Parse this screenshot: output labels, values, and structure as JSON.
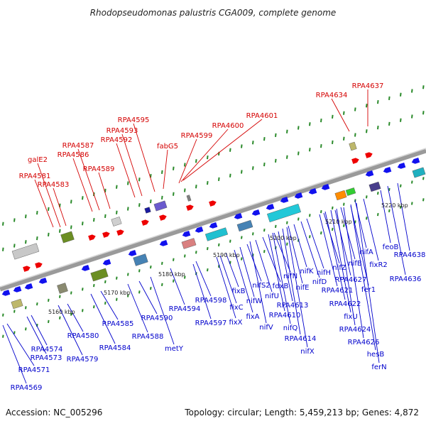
{
  "title": "Rhodopseudomonas palustris CGA009, complete genome",
  "footer": {
    "accession": "Accession: NC_005296",
    "topology": "Topology: circular; Length: 5,459,213 bp; Genes: 4,872"
  },
  "colors": {
    "label_top": "#d40000",
    "label_bottom": "#0000cc",
    "backbone": "#9a9a9a",
    "forward_gene": "#ee0000",
    "reverse_gene": "#1111ee",
    "tick": "#2a8a2a"
  },
  "kbp_ticks": [
    "5160 kbp",
    "5170 kbp",
    "5180 kbp",
    "5190 kbp",
    "5200 kbp",
    "5210 kbp",
    "5220 kbp"
  ],
  "top_labels": [
    "RPA4581",
    "galE2",
    "RPA4583",
    "RPA4586",
    "RPA4587",
    "RPA4589",
    "RPA4592",
    "RPA4593",
    "RPA4595",
    "fabG5",
    "RPA4599",
    "RPA4600",
    "RPA4601",
    "RPA4634",
    "RPA4637"
  ],
  "bottom_labels": [
    "RPA4569",
    "RPA4571",
    "RPA4573",
    "RPA4574",
    "RPA4579",
    "RPA4580",
    "RPA4584",
    "RPA4585",
    "RPA4588",
    "RPA4590",
    "metY",
    "RPA4594",
    "RPA4597",
    "RPA4598",
    "fixC",
    "fixB",
    "fixX",
    "fixA",
    "nifW",
    "nifS2",
    "nifV",
    "nifU",
    "fdxB",
    "nifN",
    "RPA4610",
    "RPA4613",
    "nifQ",
    "RPA4614",
    "nifX",
    "nifK",
    "nifE",
    "nifD",
    "nifH",
    "nifZ",
    "RPA4621",
    "RPA4622",
    "RPA4627",
    "fixU",
    "nifB",
    "RPA4624",
    "RPA4626",
    "hesB",
    "nifA",
    "fer1",
    "fixR2",
    "ferN",
    "feoB",
    "RPA4636",
    "RPA4638"
  ]
}
